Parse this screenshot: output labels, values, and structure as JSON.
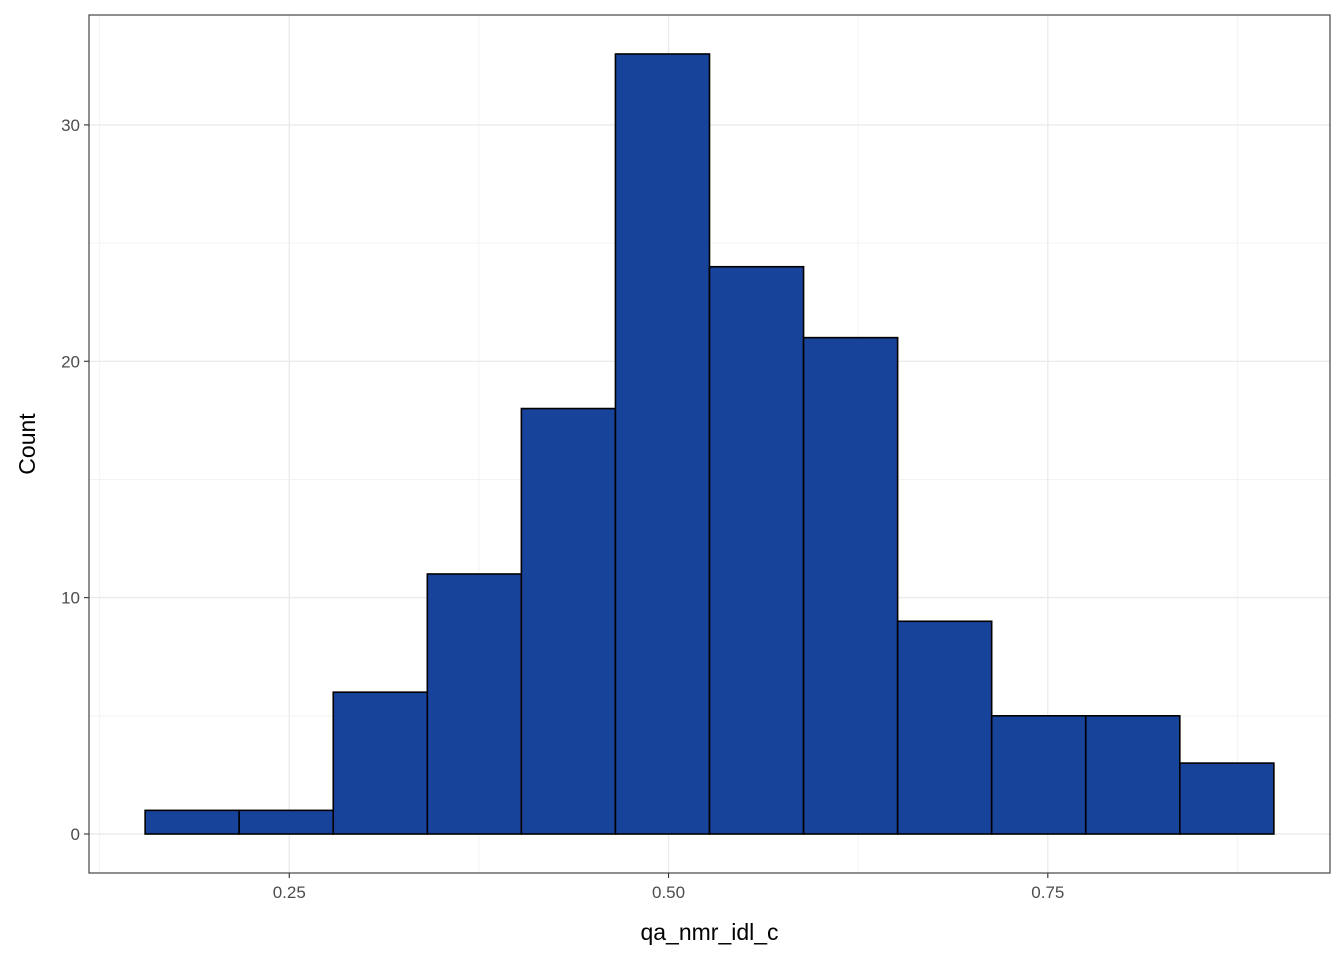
{
  "chart_data": {
    "type": "bar",
    "subtype": "histogram",
    "xlabel": "qa_nmr_idl_c",
    "ylabel": "Count",
    "bins": [
      {
        "x0": 0.155,
        "x1": 0.217,
        "count": 1
      },
      {
        "x0": 0.217,
        "x1": 0.279,
        "count": 1
      },
      {
        "x0": 0.279,
        "x1": 0.341,
        "count": 6
      },
      {
        "x0": 0.341,
        "x1": 0.403,
        "count": 11
      },
      {
        "x0": 0.403,
        "x1": 0.465,
        "count": 18
      },
      {
        "x0": 0.465,
        "x1": 0.527,
        "count": 33
      },
      {
        "x0": 0.527,
        "x1": 0.589,
        "count": 24
      },
      {
        "x0": 0.589,
        "x1": 0.651,
        "count": 21
      },
      {
        "x0": 0.651,
        "x1": 0.713,
        "count": 9
      },
      {
        "x0": 0.713,
        "x1": 0.775,
        "count": 5
      },
      {
        "x0": 0.775,
        "x1": 0.837,
        "count": 5
      },
      {
        "x0": 0.837,
        "x1": 0.899,
        "count": 3
      }
    ],
    "xlim": [
      0.118,
      0.936
    ],
    "ylim": [
      -1.65,
      34.65
    ],
    "x_ticks": [
      {
        "value": 0.25,
        "label": "0.25"
      },
      {
        "value": 0.5,
        "label": "0.50"
      },
      {
        "value": 0.75,
        "label": "0.75"
      }
    ],
    "y_ticks": [
      {
        "value": 0,
        "label": "0"
      },
      {
        "value": 10,
        "label": "10"
      },
      {
        "value": 20,
        "label": "20"
      },
      {
        "value": 30,
        "label": "30"
      }
    ],
    "x_minor_ticks": [
      0.125,
      0.375,
      0.625,
      0.875
    ],
    "y_minor_ticks": [
      5,
      15,
      25
    ],
    "grid": true,
    "legend": "none",
    "colors": {
      "bar_fill": "#18439a",
      "bar_outline": "#000000",
      "grid_major": "#ebebeb",
      "grid_minor": "#f3f3f3",
      "panel_border": "#333333",
      "tick_label": "#4d4d4d"
    }
  }
}
